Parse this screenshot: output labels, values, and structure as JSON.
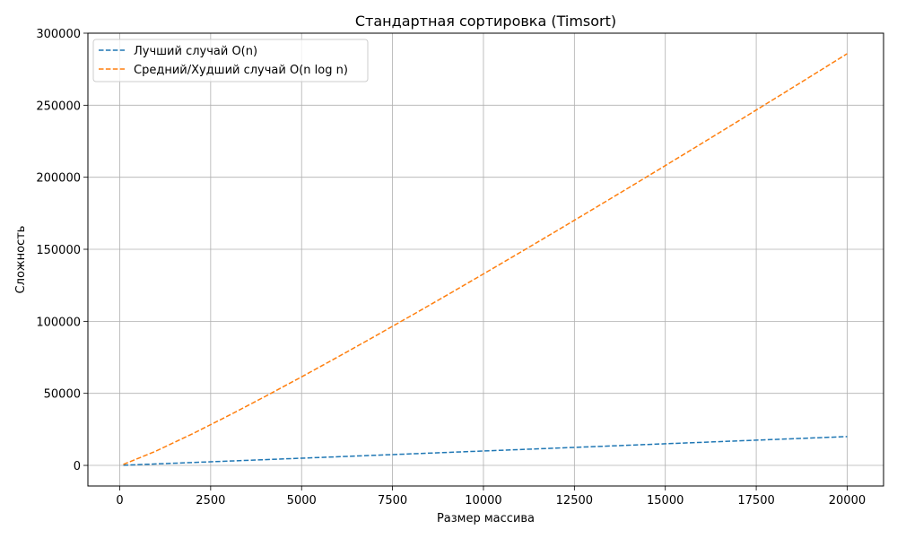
{
  "chart_data": {
    "type": "line",
    "title": "Стандартная сортировка (Timsort)",
    "xlabel": "Размер массива",
    "ylabel": "Сложность",
    "xlim": [
      -875,
      21000
    ],
    "ylim": [
      -14300,
      300000
    ],
    "xticks": [
      0,
      2500,
      5000,
      7500,
      10000,
      12500,
      15000,
      17500,
      20000
    ],
    "yticks": [
      0,
      50000,
      100000,
      150000,
      200000,
      250000,
      300000
    ],
    "grid": true,
    "legend_position": "top-left",
    "x": [
      100,
      1000,
      2000,
      3000,
      4000,
      5000,
      6000,
      7000,
      8000,
      9000,
      10000,
      11000,
      12000,
      13000,
      14000,
      15000,
      16000,
      17000,
      18000,
      19000,
      20000
    ],
    "series": [
      {
        "name": "Лучший случай O(n)",
        "color": "#1f77b4",
        "style": "dashed",
        "values": [
          100,
          1000,
          2000,
          3000,
          4000,
          5000,
          6000,
          7000,
          8000,
          9000,
          10000,
          11000,
          12000,
          13000,
          14000,
          15000,
          16000,
          17000,
          18000,
          19000,
          20000
        ]
      },
      {
        "name": "Средний/Худший случай O(n log n)",
        "color": "#ff7f0e",
        "style": "dashed",
        "values": [
          664,
          9966,
          21932,
          34652,
          47863,
          61439,
          75304,
          89412,
          103726,
          118221,
          132877,
          147677,
          162609,
          177659,
          192820,
          208084,
          223446,
          238898,
          254435,
          270055,
          285754
        ]
      }
    ]
  }
}
